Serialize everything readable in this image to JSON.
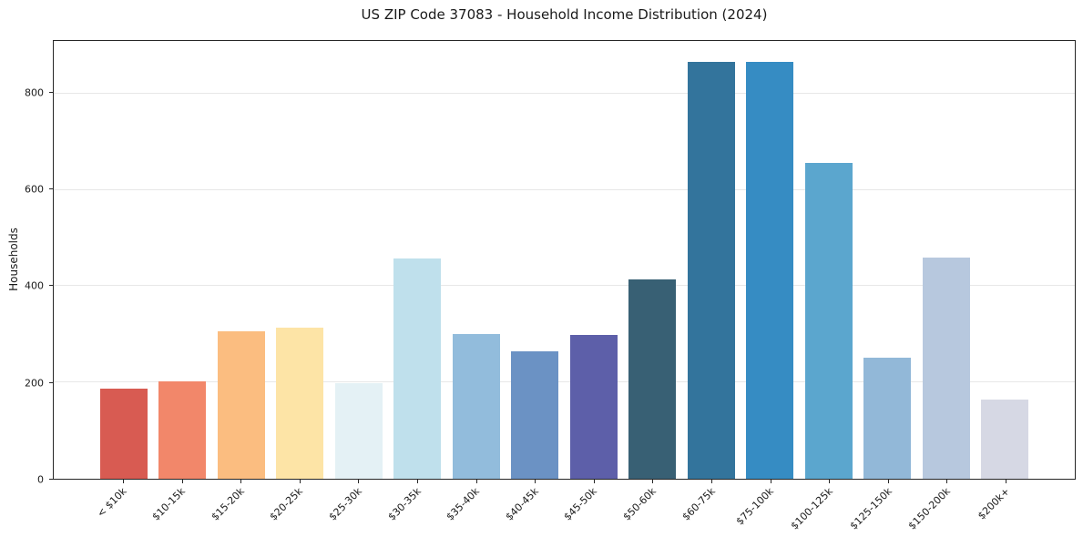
{
  "chart_data": {
    "type": "bar",
    "title": "US ZIP Code 37083 - Household Income Distribution (2024)",
    "xlabel": "",
    "ylabel": "Households",
    "categories": [
      "< $10k",
      "$10-15k",
      "$15-20k",
      "$20-25k",
      "$25-30k",
      "$30-35k",
      "$35-40k",
      "$40-45k",
      "$45-50k",
      "$50-60k",
      "$60-75k",
      "$75-100k",
      "$100-125k",
      "$125-150k",
      "$150-200k",
      "$200k+"
    ],
    "values": [
      187,
      203,
      306,
      313,
      199,
      458,
      301,
      264,
      298,
      414,
      866,
      866,
      655,
      252,
      460,
      165
    ],
    "bar_colors": [
      "#d85b52",
      "#f2876a",
      "#fbbd80",
      "#fde4a6",
      "#e4f1f5",
      "#bfe0ec",
      "#92bcdc",
      "#6b92c4",
      "#5d5fa9",
      "#386074",
      "#33749c",
      "#368cc3",
      "#5ba6ce",
      "#92b8d8",
      "#b7c8de",
      "#d6d8e4"
    ],
    "yticks": [
      0,
      200,
      400,
      600,
      800
    ],
    "yticklabels": [
      "0",
      "200",
      "400",
      "600",
      "800"
    ],
    "ylim": [
      0,
      909
    ],
    "xlim": [
      -1.19,
      16.19
    ],
    "bar_width": 0.8,
    "grid": "horizontal-only",
    "legend": "none",
    "colors": {
      "background": "#ffffff",
      "grid": "#e7e7e7",
      "spine": "#262626",
      "text": "#1a1a1a"
    }
  }
}
